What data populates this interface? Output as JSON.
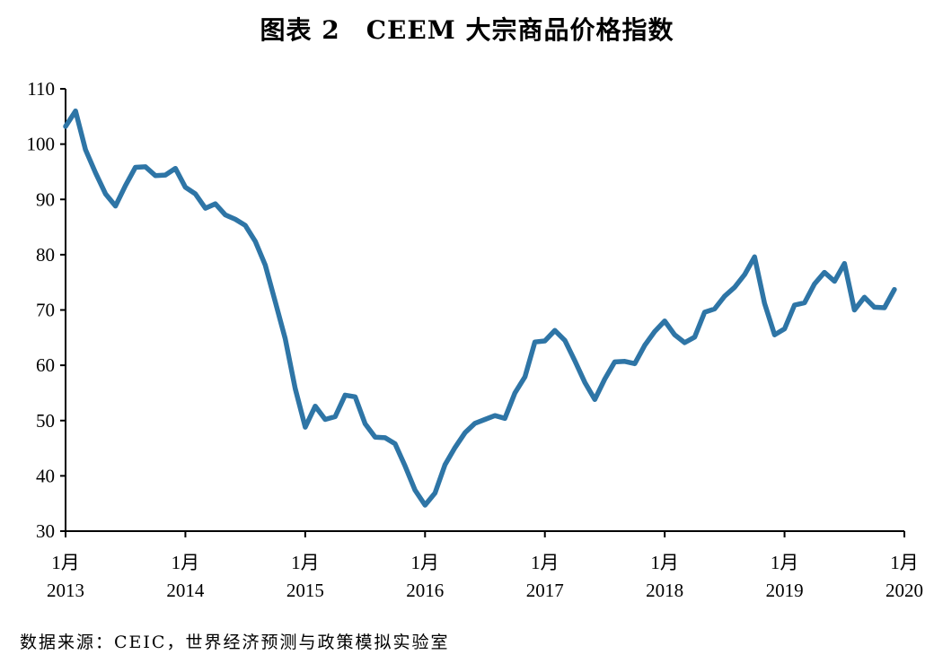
{
  "chart_data": {
    "type": "line",
    "title": "图表 2　CEEM 大宗商品价格指数",
    "source": "数据来源：CEIC，世界经济预测与政策模拟实验室",
    "ylim": [
      30,
      110
    ],
    "yticks": [
      30,
      40,
      50,
      60,
      70,
      80,
      90,
      100,
      110
    ],
    "xlim": [
      0,
      84
    ],
    "xticks": [
      {
        "month_label": "1月",
        "year": "2013",
        "index": 0
      },
      {
        "month_label": "1月",
        "year": "2014",
        "index": 12
      },
      {
        "month_label": "1月",
        "year": "2015",
        "index": 24
      },
      {
        "month_label": "1月",
        "year": "2016",
        "index": 36
      },
      {
        "month_label": "1月",
        "year": "2017",
        "index": 48
      },
      {
        "month_label": "1月",
        "year": "2018",
        "index": 60
      },
      {
        "month_label": "1月",
        "year": "2019",
        "index": 72
      },
      {
        "month_label": "1月",
        "year": "2020",
        "index": 84
      }
    ],
    "grid": false,
    "line_color": "#2e75a6",
    "x_start": "2013-01",
    "series": [
      {
        "values": [
          103.2,
          106.0,
          99.0,
          94.8,
          91.0,
          88.8,
          92.5,
          95.8,
          95.9,
          94.3,
          94.4,
          95.6,
          92.2,
          91.0,
          88.4,
          89.2,
          87.2,
          86.4,
          85.3,
          82.4,
          78.1,
          71.5,
          64.8,
          55.8,
          48.8,
          52.6,
          50.2,
          50.7,
          54.6,
          54.3,
          49.4,
          47.0,
          46.9,
          45.8,
          41.8,
          37.4,
          34.7,
          36.9,
          42.0,
          45.1,
          47.8,
          49.5,
          50.2,
          50.9,
          50.4,
          55.0,
          57.9,
          64.2,
          64.4,
          66.3,
          64.5,
          60.8,
          56.9,
          53.8,
          57.5,
          60.6,
          60.7,
          60.3,
          63.6,
          66.1,
          68.0,
          65.5,
          64.1,
          65.1,
          69.6,
          70.2,
          72.5,
          74.1,
          76.4,
          79.6,
          71.2,
          65.5,
          66.6,
          70.9,
          71.3,
          74.7,
          76.8,
          75.2,
          78.4,
          70.0,
          72.3,
          70.5,
          70.4,
          73.7
        ]
      }
    ]
  }
}
